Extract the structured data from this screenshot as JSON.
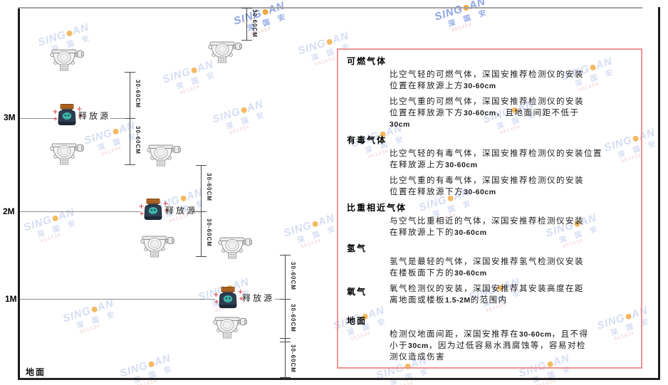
{
  "diagram": {
    "axis_labels": {
      "m3": "3M",
      "m2": "2M",
      "m1": "1M"
    },
    "ground_label": "地面",
    "release_source_label": "释放源",
    "dim_label": "30-60CM"
  },
  "panel": {
    "sections": [
      {
        "heading": "可燃气体",
        "inline": false,
        "gap_before": false,
        "paragraphs": [
          [
            "比空气轻的可燃气体，深国安推荐检测仪的安装",
            "位置在释放源上方30-60cm"
          ],
          [
            "比空气重的可燃气体，深国安推荐检测仪的安装",
            "位置在释放源下方30-60cm，且地面间距不低于",
            "30cm"
          ]
        ]
      },
      {
        "heading": "有毒气体",
        "inline": false,
        "gap_before": false,
        "paragraphs": [
          [
            "比空气轻的有毒气体，深国安推荐检测仪的安装位置",
            "在释放源上方30-60cm"
          ],
          [
            "比空气重的有毒气体，深国安推荐检测仪的安装",
            "位置在释放源下方30-60cm"
          ]
        ]
      },
      {
        "heading": "比重相近气体",
        "inline": false,
        "gap_before": false,
        "paragraphs": [
          [
            "与空气比重相近的气体，深国安推荐检测仪安装",
            "在释放源上下的30-60cm"
          ]
        ]
      },
      {
        "heading": "氢气",
        "inline": false,
        "gap_before": false,
        "paragraphs": [
          [
            "氢气是最轻的气体，深国安推荐氢气检测仪安装",
            "在楼板面下方的30-60cm"
          ]
        ]
      },
      {
        "heading": "氧气",
        "inline": true,
        "gap_before": false,
        "paragraphs": [
          [
            "氧气检测仪的安装，深国安推荐其安装高度在距",
            "离地面或楼板1.5-2M的范围内"
          ]
        ]
      },
      {
        "heading": "地面",
        "inline": false,
        "gap_before": true,
        "paragraphs": [
          [
            "检测仪地面间距，深国安推荐在30-60cm，且不得",
            "小于30cm，因为过低容易水溅腐蚀等，容易对检",
            "测仪造成伤害"
          ]
        ]
      }
    ]
  },
  "watermark": {
    "brand_part1": "SING",
    "brand_part2": "AN",
    "brand_sub": "深 国 安",
    "brand_tiny": "661434"
  },
  "colors": {
    "panel_border": "#f09393",
    "release_body": "#2d3e52",
    "release_cap": "#bf6d28",
    "release_blob": "#45b8ae",
    "accent_red": "#e2595b",
    "watermark_blue": "#ccd5f1",
    "watermark_orange": "#f2a93b"
  }
}
